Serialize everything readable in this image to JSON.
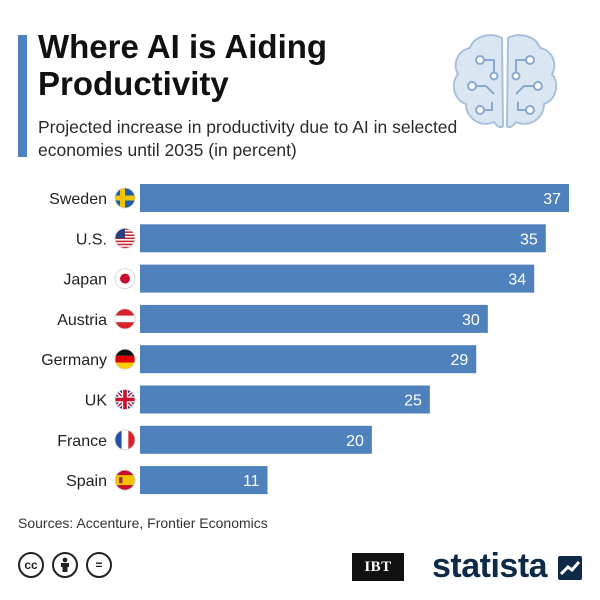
{
  "header": {
    "title": "Where AI is Aiding Productivity",
    "subtitle": "Projected increase in productivity due to AI in selected economies until 2035 (in percent)"
  },
  "colors": {
    "bar": "#4f81bd",
    "accent": "#4f81bd",
    "brand": "#0e2a47"
  },
  "chart_data": {
    "type": "bar",
    "orientation": "horizontal",
    "categories": [
      "Sweden",
      "U.S.",
      "Japan",
      "Austria",
      "Germany",
      "UK",
      "France",
      "Spain"
    ],
    "flags": [
      "sweden-flag-icon",
      "us-flag-icon",
      "japan-flag-icon",
      "austria-flag-icon",
      "germany-flag-icon",
      "uk-flag-icon",
      "france-flag-icon",
      "spain-flag-icon"
    ],
    "values": [
      37,
      35,
      34,
      30,
      29,
      25,
      20,
      11
    ],
    "xlim": [
      0,
      37
    ],
    "grid": false,
    "data_labels": true
  },
  "footer": {
    "sources": "Sources: Accenture, Frontier Economics",
    "license_icons": [
      "cc-icon",
      "attribution-icon",
      "no-derivatives-icon"
    ],
    "license_labels": [
      "cc",
      "",
      "="
    ],
    "partner_logo": "IBT",
    "brand_logo": "statista"
  }
}
